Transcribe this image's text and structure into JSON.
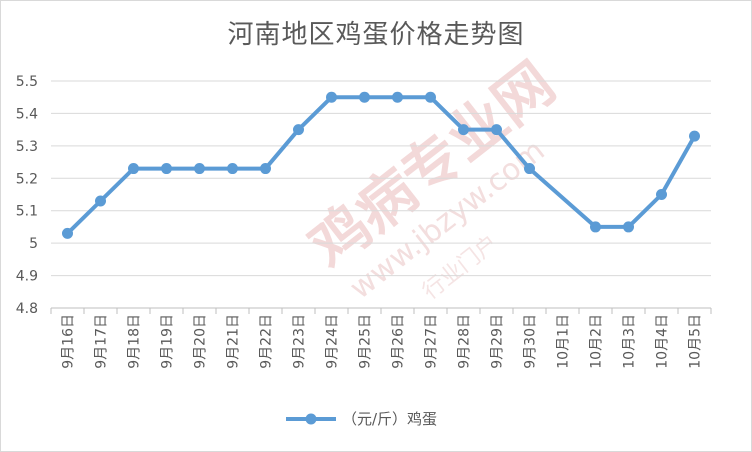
{
  "chart_data": {
    "type": "line",
    "title": "河南地区鸡蛋价格走势图",
    "categories": [
      "9月16日",
      "9月17日",
      "9月18日",
      "9月19日",
      "9月20日",
      "9月21日",
      "9月22日",
      "9月23日",
      "9月24日",
      "9月25日",
      "9月26日",
      "9月27日",
      "9月28日",
      "9月29日",
      "9月30日",
      "10月1日",
      "10月2日",
      "10月3日",
      "10月4日",
      "10月5日"
    ],
    "series": [
      {
        "name": "（元/斤）鸡蛋",
        "color": "#5b9bd5",
        "values": [
          5.03,
          5.13,
          5.23,
          5.23,
          5.23,
          5.23,
          5.23,
          5.35,
          5.45,
          5.45,
          5.45,
          5.45,
          5.35,
          5.35,
          5.23,
          null,
          5.05,
          5.05,
          5.15,
          5.33
        ]
      }
    ],
    "gap_bridge": [
      [
        14,
        16
      ]
    ],
    "ylim": [
      4.8,
      5.5
    ],
    "yticks": [
      4.8,
      4.9,
      5,
      5.1,
      5.2,
      5.3,
      5.4,
      5.5
    ],
    "ytick_labels": [
      "4.8",
      "4.9",
      "5",
      "5.1",
      "5.2",
      "5.3",
      "5.4",
      "5.5"
    ],
    "grid": true,
    "legend_position": "bottom",
    "watermark": {
      "text_main": "鸡病专业网",
      "text_url": "www.jbzyw.com",
      "text_small": "行业门户"
    }
  }
}
